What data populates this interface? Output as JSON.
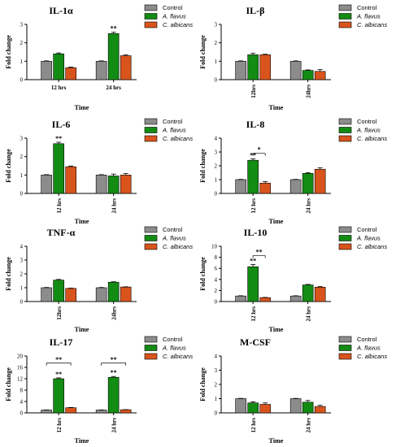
{
  "legend": [
    {
      "label": "Control",
      "italic": false
    },
    {
      "label": "A. flavus",
      "italic": true
    },
    {
      "label": "C. albicans",
      "italic": true
    }
  ],
  "colors": {
    "control": "#8c8c8c",
    "a_flavus": "#138c13",
    "c_albicans": "#d9541c",
    "axis": "#000000"
  },
  "chart_data": [
    {
      "type": "bar",
      "title": "IL-1α",
      "xlabel": "Time",
      "ylabel": "Fold change",
      "categories": [
        "12 hrs",
        "24 hrs"
      ],
      "cat_rotated": false,
      "ylim": [
        0,
        3
      ],
      "yticks": [
        0,
        1,
        2,
        3
      ],
      "series": [
        {
          "name": "Control",
          "values": [
            1.0,
            1.0
          ],
          "errors": [
            0.02,
            0.02
          ]
        },
        {
          "name": "A. flavus",
          "values": [
            1.4,
            2.5
          ],
          "errors": [
            0.05,
            0.07
          ]
        },
        {
          "name": "C. albicans",
          "values": [
            0.65,
            1.3
          ],
          "errors": [
            0.03,
            0.04
          ]
        }
      ],
      "annotations": [
        {
          "series": 1,
          "category": 1,
          "text": "**"
        }
      ],
      "brackets": []
    },
    {
      "type": "bar",
      "title": "IL-β",
      "xlabel": "Time",
      "ylabel": "Fold change",
      "categories": [
        "12hrs",
        "24hrs"
      ],
      "cat_rotated": true,
      "ylim": [
        0,
        3
      ],
      "yticks": [
        0,
        1,
        2,
        3
      ],
      "series": [
        {
          "name": "Control",
          "values": [
            1.0,
            1.0
          ],
          "errors": [
            0.02,
            0.02
          ]
        },
        {
          "name": "A. flavus",
          "values": [
            1.35,
            0.5
          ],
          "errors": [
            0.08,
            0.03
          ]
        },
        {
          "name": "C. albicans",
          "values": [
            1.35,
            0.45
          ],
          "errors": [
            0.03,
            0.1
          ]
        }
      ],
      "annotations": [],
      "brackets": []
    },
    {
      "type": "bar",
      "title": "IL-6",
      "xlabel": "Time",
      "ylabel": "Fold change",
      "categories": [
        "12 hrs",
        "24 hrs"
      ],
      "cat_rotated": true,
      "ylim": [
        0,
        3
      ],
      "yticks": [
        0,
        1,
        2,
        3
      ],
      "series": [
        {
          "name": "Control",
          "values": [
            1.0,
            1.0
          ],
          "errors": [
            0.02,
            0.02
          ]
        },
        {
          "name": "A. flavus",
          "values": [
            2.7,
            0.95
          ],
          "errors": [
            0.08,
            0.1
          ]
        },
        {
          "name": "C. albicans",
          "values": [
            1.45,
            1.0
          ],
          "errors": [
            0.04,
            0.08
          ]
        }
      ],
      "annotations": [
        {
          "series": 1,
          "category": 0,
          "text": "**"
        }
      ],
      "brackets": []
    },
    {
      "type": "bar",
      "title": "IL-8",
      "xlabel": "Time",
      "ylabel": "Fold change",
      "categories": [
        "12 hrs",
        "24 hrs"
      ],
      "cat_rotated": true,
      "ylim": [
        0,
        4
      ],
      "yticks": [
        0,
        1,
        2,
        3,
        4
      ],
      "series": [
        {
          "name": "Control",
          "values": [
            1.0,
            1.0
          ],
          "errors": [
            0.02,
            0.02
          ]
        },
        {
          "name": "A. flavus",
          "values": [
            2.4,
            1.45
          ],
          "errors": [
            0.1,
            0.06
          ]
        },
        {
          "name": "C. albicans",
          "values": [
            0.75,
            1.75
          ],
          "errors": [
            0.1,
            0.1
          ]
        }
      ],
      "annotations": [
        {
          "series": 1,
          "category": 0,
          "text": "**"
        }
      ],
      "brackets": [
        {
          "category": 0,
          "from_series": 1,
          "to_series": 2,
          "y": 2.9,
          "text": "*"
        }
      ]
    },
    {
      "type": "bar",
      "title": "TNF-α",
      "xlabel": "Time",
      "ylabel": "Fold change",
      "categories": [
        "12hrs",
        "24hrs"
      ],
      "cat_rotated": true,
      "ylim": [
        0,
        4
      ],
      "yticks": [
        0,
        1,
        2,
        3,
        4
      ],
      "series": [
        {
          "name": "Control",
          "values": [
            1.0,
            1.0
          ],
          "errors": [
            0.02,
            0.02
          ]
        },
        {
          "name": "A. flavus",
          "values": [
            1.55,
            1.4
          ],
          "errors": [
            0.05,
            0.03
          ]
        },
        {
          "name": "C. albicans",
          "values": [
            0.95,
            1.05
          ],
          "errors": [
            0.02,
            0.02
          ]
        }
      ],
      "annotations": [],
      "brackets": []
    },
    {
      "type": "bar",
      "title": "IL-10",
      "xlabel": "Time",
      "ylabel": "Fold change",
      "categories": [
        "12 hrs",
        "24 hrs"
      ],
      "cat_rotated": true,
      "ylim": [
        0,
        10
      ],
      "yticks": [
        0,
        2,
        4,
        6,
        8,
        10
      ],
      "series": [
        {
          "name": "Control",
          "values": [
            1.0,
            1.0
          ],
          "errors": [
            0.05,
            0.05
          ]
        },
        {
          "name": "A. flavus",
          "values": [
            6.3,
            3.0
          ],
          "errors": [
            0.4,
            0.1
          ]
        },
        {
          "name": "C. albicans",
          "values": [
            0.7,
            2.6
          ],
          "errors": [
            0.05,
            0.1
          ]
        }
      ],
      "annotations": [
        {
          "series": 1,
          "category": 0,
          "text": "**"
        }
      ],
      "brackets": [
        {
          "category": 0,
          "from_series": 1,
          "to_series": 2,
          "y": 8.3,
          "text": "**"
        }
      ]
    },
    {
      "type": "bar",
      "title": "IL-17",
      "xlabel": "Time",
      "ylabel": "Fold change",
      "categories": [
        "12 hrs",
        "24 hrs"
      ],
      "cat_rotated": true,
      "ylim": [
        0,
        20
      ],
      "yticks": [
        0,
        4,
        8,
        12,
        16,
        20
      ],
      "series": [
        {
          "name": "Control",
          "values": [
            1.0,
            1.0
          ],
          "errors": [
            0.05,
            0.05
          ]
        },
        {
          "name": "A. flavus",
          "values": [
            12.0,
            12.5
          ],
          "errors": [
            0.3,
            0.3
          ]
        },
        {
          "name": "C. albicans",
          "values": [
            1.8,
            1.1
          ],
          "errors": [
            0.1,
            0.05
          ]
        }
      ],
      "annotations": [
        {
          "series": 1,
          "category": 0,
          "text": "**"
        },
        {
          "series": 1,
          "category": 1,
          "text": "**"
        }
      ],
      "brackets": [
        {
          "category": 0,
          "from_series": 0,
          "to_series": 2,
          "y": 17.5,
          "text": "**"
        },
        {
          "category": 1,
          "from_series": 0,
          "to_series": 2,
          "y": 17.5,
          "text": "**"
        }
      ]
    },
    {
      "type": "bar",
      "title": "M-CSF",
      "xlabel": "Time",
      "ylabel": "Fold change",
      "categories": [
        "12 hrs",
        "24 hrs"
      ],
      "cat_rotated": true,
      "ylim": [
        0,
        4
      ],
      "yticks": [
        0,
        1,
        2,
        3,
        4
      ],
      "series": [
        {
          "name": "Control",
          "values": [
            1.0,
            1.0
          ],
          "errors": [
            0.02,
            0.02
          ]
        },
        {
          "name": "A. flavus",
          "values": [
            0.7,
            0.75
          ],
          "errors": [
            0.08,
            0.12
          ]
        },
        {
          "name": "C. albicans",
          "values": [
            0.6,
            0.45
          ],
          "errors": [
            0.1,
            0.08
          ]
        }
      ],
      "annotations": [],
      "brackets": []
    }
  ]
}
